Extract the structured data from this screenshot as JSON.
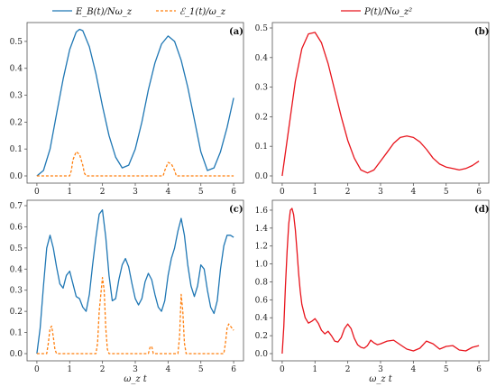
{
  "legend": {
    "eb_label": "E_B(t)/Nω_z",
    "e1_label": "ℰ_1(t)/ω_z",
    "p_label": "P(t)/Nω_z²"
  },
  "colors": {
    "eb": "#1f77b4",
    "e1": "#ff7f0e",
    "p": "#e8141c"
  },
  "chart_data": [
    {
      "panel": "(a)",
      "type": "line",
      "xlabel": "",
      "ylim": [
        0,
        0.55
      ],
      "xlim": [
        -0.3,
        6.3
      ],
      "xticks": [
        0,
        1,
        2,
        3,
        4,
        5,
        6
      ],
      "yticks": [
        0.0,
        0.1,
        0.2,
        0.3,
        0.4,
        0.5
      ],
      "ytick_labels": [
        "0.0",
        "0.1",
        "0.2",
        "0.3",
        "0.4",
        "0.5"
      ],
      "series": [
        {
          "key": "eb",
          "style": "solid",
          "x": [
            0,
            0.2,
            0.4,
            0.6,
            0.8,
            1.0,
            1.2,
            1.3,
            1.4,
            1.6,
            1.8,
            2.0,
            2.2,
            2.4,
            2.6,
            2.8,
            3.0,
            3.2,
            3.4,
            3.6,
            3.8,
            4.0,
            4.2,
            4.4,
            4.6,
            4.8,
            5.0,
            5.2,
            5.4,
            5.6,
            5.8,
            6.0
          ],
          "y": [
            0.0,
            0.02,
            0.1,
            0.23,
            0.36,
            0.47,
            0.535,
            0.545,
            0.54,
            0.48,
            0.38,
            0.26,
            0.15,
            0.07,
            0.03,
            0.04,
            0.1,
            0.2,
            0.32,
            0.42,
            0.49,
            0.52,
            0.5,
            0.43,
            0.33,
            0.21,
            0.09,
            0.02,
            0.03,
            0.09,
            0.18,
            0.29
          ]
        },
        {
          "key": "e1",
          "style": "dashed",
          "x": [
            0,
            1.0,
            1.05,
            1.1,
            1.2,
            1.3,
            1.4,
            1.45,
            1.5,
            3.85,
            3.9,
            4.0,
            4.1,
            4.2,
            4.25,
            6.0
          ],
          "y": [
            0,
            0,
            0.02,
            0.06,
            0.09,
            0.08,
            0.04,
            0.01,
            0,
            0,
            0.02,
            0.05,
            0.045,
            0.02,
            0,
            0
          ]
        }
      ]
    },
    {
      "panel": "(b)",
      "type": "line",
      "xlabel": "",
      "ylim": [
        0,
        0.5
      ],
      "xlim": [
        -0.3,
        6.3
      ],
      "xticks": [
        0,
        1,
        2,
        3,
        4,
        5,
        6
      ],
      "yticks": [
        0.0,
        0.1,
        0.2,
        0.3,
        0.4,
        0.5
      ],
      "ytick_labels": [
        "0.0",
        "0.1",
        "0.2",
        "0.3",
        "0.4",
        "0.5"
      ],
      "series": [
        {
          "key": "p",
          "style": "solid",
          "x": [
            0,
            0.2,
            0.4,
            0.6,
            0.8,
            1.0,
            1.2,
            1.4,
            1.6,
            1.8,
            2.0,
            2.2,
            2.4,
            2.6,
            2.8,
            3.0,
            3.2,
            3.4,
            3.6,
            3.8,
            4.0,
            4.2,
            4.4,
            4.6,
            4.8,
            5.0,
            5.2,
            5.4,
            5.6,
            5.8,
            6.0
          ],
          "y": [
            0.0,
            0.16,
            0.32,
            0.43,
            0.48,
            0.485,
            0.45,
            0.38,
            0.29,
            0.2,
            0.12,
            0.06,
            0.02,
            0.01,
            0.02,
            0.05,
            0.08,
            0.11,
            0.13,
            0.135,
            0.13,
            0.115,
            0.09,
            0.06,
            0.04,
            0.03,
            0.025,
            0.02,
            0.025,
            0.035,
            0.05
          ]
        }
      ]
    },
    {
      "panel": "(c)",
      "type": "line",
      "xlabel": "ω_z t",
      "ylim": [
        0,
        0.7
      ],
      "xlim": [
        -0.3,
        6.3
      ],
      "xticks": [
        0,
        1,
        2,
        3,
        4,
        5,
        6
      ],
      "yticks": [
        0.0,
        0.1,
        0.2,
        0.3,
        0.4,
        0.5,
        0.6,
        0.7
      ],
      "ytick_labels": [
        "0.0",
        "0.1",
        "0.2",
        "0.3",
        "0.4",
        "0.5",
        "0.6",
        "0.7"
      ],
      "series": [
        {
          "key": "eb",
          "style": "solid",
          "x": [
            0,
            0.1,
            0.2,
            0.3,
            0.4,
            0.5,
            0.6,
            0.7,
            0.8,
            0.9,
            1.0,
            1.1,
            1.2,
            1.3,
            1.4,
            1.5,
            1.6,
            1.7,
            1.8,
            1.9,
            2.0,
            2.1,
            2.2,
            2.3,
            2.4,
            2.5,
            2.6,
            2.7,
            2.8,
            2.9,
            3.0,
            3.1,
            3.2,
            3.3,
            3.4,
            3.5,
            3.6,
            3.7,
            3.8,
            3.9,
            4.0,
            4.1,
            4.2,
            4.3,
            4.4,
            4.5,
            4.6,
            4.7,
            4.8,
            4.9,
            5.0,
            5.1,
            5.2,
            5.3,
            5.4,
            5.5,
            5.6,
            5.7,
            5.8,
            5.9,
            6.0
          ],
          "y": [
            0.0,
            0.12,
            0.32,
            0.5,
            0.56,
            0.5,
            0.41,
            0.33,
            0.31,
            0.37,
            0.39,
            0.33,
            0.27,
            0.26,
            0.22,
            0.2,
            0.28,
            0.42,
            0.55,
            0.66,
            0.68,
            0.55,
            0.37,
            0.25,
            0.26,
            0.35,
            0.42,
            0.45,
            0.41,
            0.33,
            0.26,
            0.23,
            0.26,
            0.34,
            0.38,
            0.35,
            0.28,
            0.22,
            0.2,
            0.25,
            0.37,
            0.45,
            0.5,
            0.58,
            0.64,
            0.56,
            0.42,
            0.32,
            0.27,
            0.32,
            0.42,
            0.4,
            0.3,
            0.22,
            0.19,
            0.25,
            0.4,
            0.51,
            0.56,
            0.56,
            0.55
          ]
        },
        {
          "key": "e1",
          "style": "dashed",
          "x": [
            0,
            0.3,
            0.35,
            0.4,
            0.45,
            0.5,
            0.55,
            0.6,
            1.8,
            1.85,
            1.9,
            2.0,
            2.05,
            2.1,
            2.15,
            2.2,
            3.4,
            3.45,
            3.5,
            3.55,
            4.3,
            4.35,
            4.4,
            4.45,
            4.5,
            4.55,
            5.7,
            5.75,
            5.8,
            5.85,
            5.9,
            6.0
          ],
          "y": [
            0,
            0,
            0.05,
            0.12,
            0.13,
            0.08,
            0.02,
            0,
            0,
            0.05,
            0.2,
            0.36,
            0.3,
            0.12,
            0.02,
            0,
            0,
            0.03,
            0.035,
            0,
            0,
            0.08,
            0.28,
            0.2,
            0.05,
            0,
            0,
            0.05,
            0.12,
            0.14,
            0.13,
            0.11
          ]
        }
      ]
    },
    {
      "panel": "(d)",
      "type": "line",
      "xlabel": "ω_z t",
      "ylim": [
        0,
        1.65
      ],
      "xlim": [
        -0.3,
        6.3
      ],
      "xticks": [
        0,
        1,
        2,
        3,
        4,
        5,
        6
      ],
      "yticks": [
        0.0,
        0.2,
        0.4,
        0.6,
        0.8,
        1.0,
        1.2,
        1.4,
        1.6
      ],
      "ytick_labels": [
        "0.0",
        "0.2",
        "0.4",
        "0.6",
        "0.8",
        "1.0",
        "1.2",
        "1.4",
        "1.6"
      ],
      "series": [
        {
          "key": "p",
          "style": "solid",
          "x": [
            0,
            0.05,
            0.1,
            0.15,
            0.2,
            0.25,
            0.3,
            0.35,
            0.4,
            0.45,
            0.5,
            0.55,
            0.6,
            0.7,
            0.8,
            0.9,
            1.0,
            1.1,
            1.2,
            1.3,
            1.4,
            1.5,
            1.6,
            1.7,
            1.8,
            1.9,
            2.0,
            2.1,
            2.2,
            2.3,
            2.4,
            2.5,
            2.6,
            2.7,
            2.8,
            2.9,
            3.0,
            3.2,
            3.4,
            3.6,
            3.8,
            4.0,
            4.2,
            4.4,
            4.6,
            4.8,
            5.0,
            5.2,
            5.4,
            5.6,
            5.8,
            6.0
          ],
          "y": [
            0.0,
            0.3,
            0.75,
            1.15,
            1.45,
            1.6,
            1.62,
            1.55,
            1.38,
            1.15,
            0.9,
            0.7,
            0.55,
            0.4,
            0.34,
            0.36,
            0.39,
            0.34,
            0.26,
            0.22,
            0.25,
            0.2,
            0.14,
            0.13,
            0.18,
            0.28,
            0.33,
            0.28,
            0.17,
            0.1,
            0.07,
            0.06,
            0.09,
            0.15,
            0.12,
            0.1,
            0.11,
            0.14,
            0.15,
            0.1,
            0.05,
            0.03,
            0.06,
            0.14,
            0.11,
            0.05,
            0.08,
            0.09,
            0.04,
            0.03,
            0.07,
            0.09
          ]
        }
      ]
    }
  ]
}
